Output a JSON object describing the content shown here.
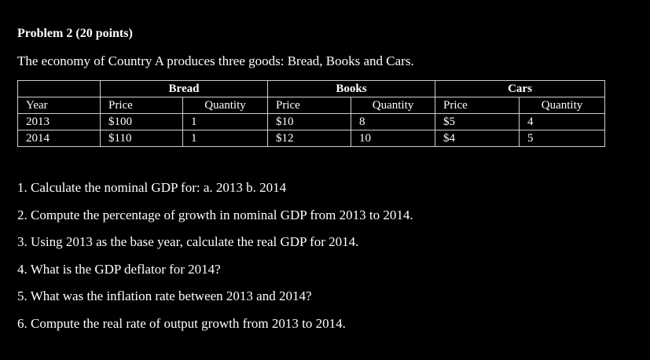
{
  "problem": {
    "title": "Problem 2 (20 points)",
    "intro": "The economy of Country A produces three goods: Bread, Books and Cars."
  },
  "table": {
    "groups": [
      "Bread",
      "Books",
      "Cars"
    ],
    "year_header": "Year",
    "price_header": "Price",
    "quantity_header": "Quantity",
    "rows": [
      {
        "year": "2013",
        "bread_price": "$100",
        "bread_qty": "1",
        "books_price": "$10",
        "books_qty": "8",
        "cars_price": "$5",
        "cars_qty": "4"
      },
      {
        "year": "2014",
        "bread_price": "$110",
        "bread_qty": "1",
        "books_price": "$12",
        "books_qty": "10",
        "cars_price": "$4",
        "cars_qty": "5"
      }
    ]
  },
  "questions": [
    "1. Calculate the nominal GDP for: a. 2013 b. 2014",
    "2. Compute the percentage of growth in nominal GDP from 2013 to 2014.",
    "3. Using 2013 as the base year, calculate the real GDP for 2014.",
    "4. What is the GDP deflator for 2014?",
    "5. What was the inflation rate between 2013 and 2014?",
    "6. Compute the real rate of output growth from 2013 to 2014."
  ]
}
